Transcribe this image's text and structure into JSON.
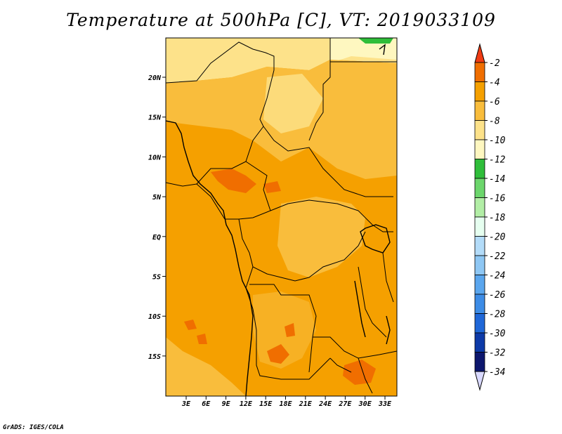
{
  "title": "Temperature at 500hPa [C], VT: 2019033109",
  "credit": "GrADS: IGES/COLA",
  "map": {
    "lat_labels": [
      "20N",
      "15N",
      "10N",
      "5N",
      "EQ",
      "5S",
      "10S",
      "15S"
    ],
    "lon_labels": [
      "3E",
      "6E",
      "9E",
      "12E",
      "15E",
      "18E",
      "21E",
      "24E",
      "27E",
      "30E",
      "33E"
    ]
  },
  "colorbar": {
    "labels": [
      "-2",
      "-4",
      "-6",
      "-8",
      "-10",
      "-12",
      "-14",
      "-16",
      "-18",
      "-20",
      "-22",
      "-24",
      "-26",
      "-28",
      "-30",
      "-32",
      "-34"
    ],
    "colors": [
      "#f03c14",
      "#f06e00",
      "#f5a000",
      "#f9bd3c",
      "#fde28a",
      "#fef7c0",
      "#2fbe3a",
      "#6cd66c",
      "#b2eea6",
      "#e6fff0",
      "#b3dcf9",
      "#8ec7f4",
      "#5aa6ee",
      "#3d8ce6",
      "#1f67d8",
      "#0d3aa8",
      "#0d176e",
      "#d9d9ff"
    ]
  }
}
